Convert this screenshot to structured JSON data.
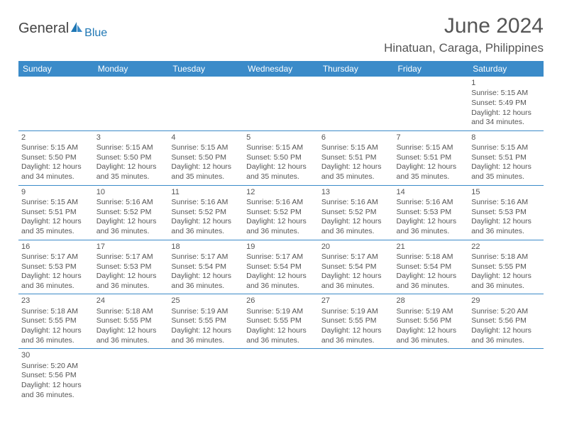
{
  "logo": {
    "general": "General",
    "blue": "Blue"
  },
  "title": "June 2024",
  "location": "Hinatuan, Caraga, Philippines",
  "headers": [
    "Sunday",
    "Monday",
    "Tuesday",
    "Wednesday",
    "Thursday",
    "Friday",
    "Saturday"
  ],
  "colors": {
    "header_bg": "#3b8bc9",
    "header_fg": "#ffffff",
    "border": "#3b8bc9",
    "text": "#555555",
    "logo_blue": "#1f77b4"
  },
  "weeks": [
    [
      null,
      null,
      null,
      null,
      null,
      null,
      {
        "n": "1",
        "sr": "Sunrise: 5:15 AM",
        "ss": "Sunset: 5:49 PM",
        "d1": "Daylight: 12 hours",
        "d2": "and 34 minutes."
      }
    ],
    [
      {
        "n": "2",
        "sr": "Sunrise: 5:15 AM",
        "ss": "Sunset: 5:50 PM",
        "d1": "Daylight: 12 hours",
        "d2": "and 34 minutes."
      },
      {
        "n": "3",
        "sr": "Sunrise: 5:15 AM",
        "ss": "Sunset: 5:50 PM",
        "d1": "Daylight: 12 hours",
        "d2": "and 35 minutes."
      },
      {
        "n": "4",
        "sr": "Sunrise: 5:15 AM",
        "ss": "Sunset: 5:50 PM",
        "d1": "Daylight: 12 hours",
        "d2": "and 35 minutes."
      },
      {
        "n": "5",
        "sr": "Sunrise: 5:15 AM",
        "ss": "Sunset: 5:50 PM",
        "d1": "Daylight: 12 hours",
        "d2": "and 35 minutes."
      },
      {
        "n": "6",
        "sr": "Sunrise: 5:15 AM",
        "ss": "Sunset: 5:51 PM",
        "d1": "Daylight: 12 hours",
        "d2": "and 35 minutes."
      },
      {
        "n": "7",
        "sr": "Sunrise: 5:15 AM",
        "ss": "Sunset: 5:51 PM",
        "d1": "Daylight: 12 hours",
        "d2": "and 35 minutes."
      },
      {
        "n": "8",
        "sr": "Sunrise: 5:15 AM",
        "ss": "Sunset: 5:51 PM",
        "d1": "Daylight: 12 hours",
        "d2": "and 35 minutes."
      }
    ],
    [
      {
        "n": "9",
        "sr": "Sunrise: 5:15 AM",
        "ss": "Sunset: 5:51 PM",
        "d1": "Daylight: 12 hours",
        "d2": "and 35 minutes."
      },
      {
        "n": "10",
        "sr": "Sunrise: 5:16 AM",
        "ss": "Sunset: 5:52 PM",
        "d1": "Daylight: 12 hours",
        "d2": "and 36 minutes."
      },
      {
        "n": "11",
        "sr": "Sunrise: 5:16 AM",
        "ss": "Sunset: 5:52 PM",
        "d1": "Daylight: 12 hours",
        "d2": "and 36 minutes."
      },
      {
        "n": "12",
        "sr": "Sunrise: 5:16 AM",
        "ss": "Sunset: 5:52 PM",
        "d1": "Daylight: 12 hours",
        "d2": "and 36 minutes."
      },
      {
        "n": "13",
        "sr": "Sunrise: 5:16 AM",
        "ss": "Sunset: 5:52 PM",
        "d1": "Daylight: 12 hours",
        "d2": "and 36 minutes."
      },
      {
        "n": "14",
        "sr": "Sunrise: 5:16 AM",
        "ss": "Sunset: 5:53 PM",
        "d1": "Daylight: 12 hours",
        "d2": "and 36 minutes."
      },
      {
        "n": "15",
        "sr": "Sunrise: 5:16 AM",
        "ss": "Sunset: 5:53 PM",
        "d1": "Daylight: 12 hours",
        "d2": "and 36 minutes."
      }
    ],
    [
      {
        "n": "16",
        "sr": "Sunrise: 5:17 AM",
        "ss": "Sunset: 5:53 PM",
        "d1": "Daylight: 12 hours",
        "d2": "and 36 minutes."
      },
      {
        "n": "17",
        "sr": "Sunrise: 5:17 AM",
        "ss": "Sunset: 5:53 PM",
        "d1": "Daylight: 12 hours",
        "d2": "and 36 minutes."
      },
      {
        "n": "18",
        "sr": "Sunrise: 5:17 AM",
        "ss": "Sunset: 5:54 PM",
        "d1": "Daylight: 12 hours",
        "d2": "and 36 minutes."
      },
      {
        "n": "19",
        "sr": "Sunrise: 5:17 AM",
        "ss": "Sunset: 5:54 PM",
        "d1": "Daylight: 12 hours",
        "d2": "and 36 minutes."
      },
      {
        "n": "20",
        "sr": "Sunrise: 5:17 AM",
        "ss": "Sunset: 5:54 PM",
        "d1": "Daylight: 12 hours",
        "d2": "and 36 minutes."
      },
      {
        "n": "21",
        "sr": "Sunrise: 5:18 AM",
        "ss": "Sunset: 5:54 PM",
        "d1": "Daylight: 12 hours",
        "d2": "and 36 minutes."
      },
      {
        "n": "22",
        "sr": "Sunrise: 5:18 AM",
        "ss": "Sunset: 5:55 PM",
        "d1": "Daylight: 12 hours",
        "d2": "and 36 minutes."
      }
    ],
    [
      {
        "n": "23",
        "sr": "Sunrise: 5:18 AM",
        "ss": "Sunset: 5:55 PM",
        "d1": "Daylight: 12 hours",
        "d2": "and 36 minutes."
      },
      {
        "n": "24",
        "sr": "Sunrise: 5:18 AM",
        "ss": "Sunset: 5:55 PM",
        "d1": "Daylight: 12 hours",
        "d2": "and 36 minutes."
      },
      {
        "n": "25",
        "sr": "Sunrise: 5:19 AM",
        "ss": "Sunset: 5:55 PM",
        "d1": "Daylight: 12 hours",
        "d2": "and 36 minutes."
      },
      {
        "n": "26",
        "sr": "Sunrise: 5:19 AM",
        "ss": "Sunset: 5:55 PM",
        "d1": "Daylight: 12 hours",
        "d2": "and 36 minutes."
      },
      {
        "n": "27",
        "sr": "Sunrise: 5:19 AM",
        "ss": "Sunset: 5:55 PM",
        "d1": "Daylight: 12 hours",
        "d2": "and 36 minutes."
      },
      {
        "n": "28",
        "sr": "Sunrise: 5:19 AM",
        "ss": "Sunset: 5:56 PM",
        "d1": "Daylight: 12 hours",
        "d2": "and 36 minutes."
      },
      {
        "n": "29",
        "sr": "Sunrise: 5:20 AM",
        "ss": "Sunset: 5:56 PM",
        "d1": "Daylight: 12 hours",
        "d2": "and 36 minutes."
      }
    ],
    [
      {
        "n": "30",
        "sr": "Sunrise: 5:20 AM",
        "ss": "Sunset: 5:56 PM",
        "d1": "Daylight: 12 hours",
        "d2": "and 36 minutes."
      },
      null,
      null,
      null,
      null,
      null,
      null
    ]
  ]
}
